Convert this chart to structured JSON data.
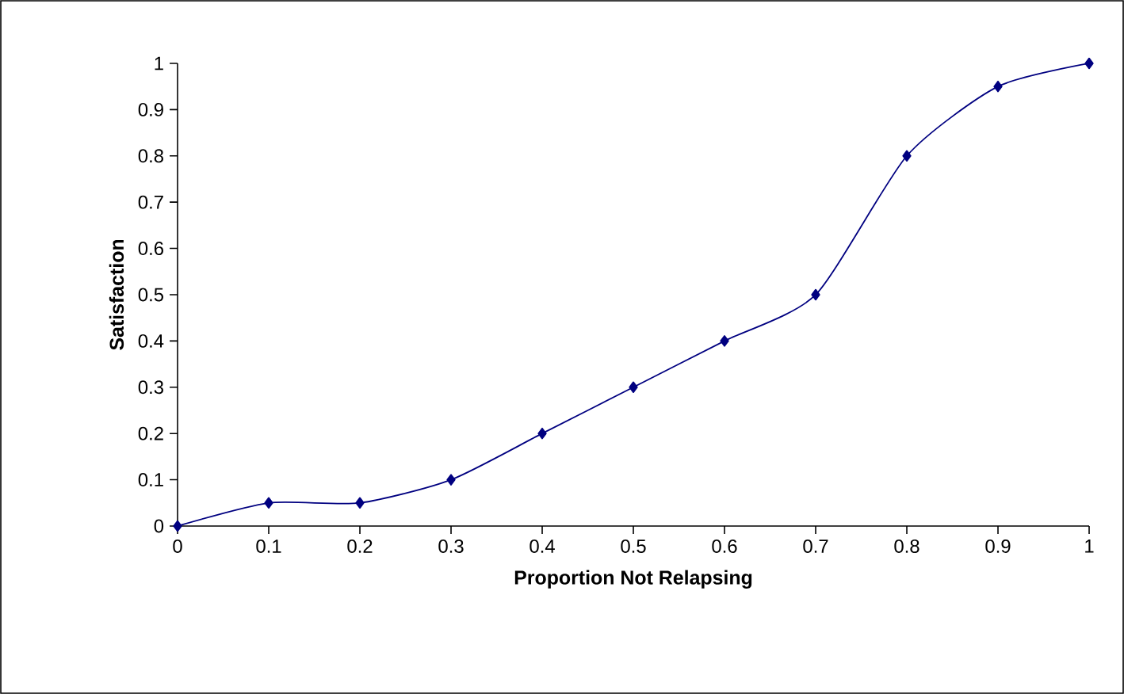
{
  "chart_data": {
    "type": "line",
    "xlabel": "Proportion Not Relapsing",
    "ylabel": "Satisfaction",
    "x": [
      0,
      0.1,
      0.2,
      0.3,
      0.4,
      0.5,
      0.6,
      0.7,
      0.8,
      0.9,
      1
    ],
    "series": [
      {
        "color": "#000080",
        "values": [
          0,
          0.05,
          0.05,
          0.1,
          0.2,
          0.3,
          0.4,
          0.5,
          0.8,
          0.95,
          1
        ]
      }
    ],
    "xlim": [
      0,
      1
    ],
    "ylim": [
      0,
      1
    ],
    "xticks": [
      0,
      0.1,
      0.2,
      0.3,
      0.4,
      0.5,
      0.6,
      0.7,
      0.8,
      0.9,
      1
    ],
    "yticks": [
      0,
      0.1,
      0.2,
      0.3,
      0.4,
      0.5,
      0.6,
      0.7,
      0.8,
      0.9,
      1
    ],
    "marker": "diamond",
    "line_style": "solid"
  }
}
